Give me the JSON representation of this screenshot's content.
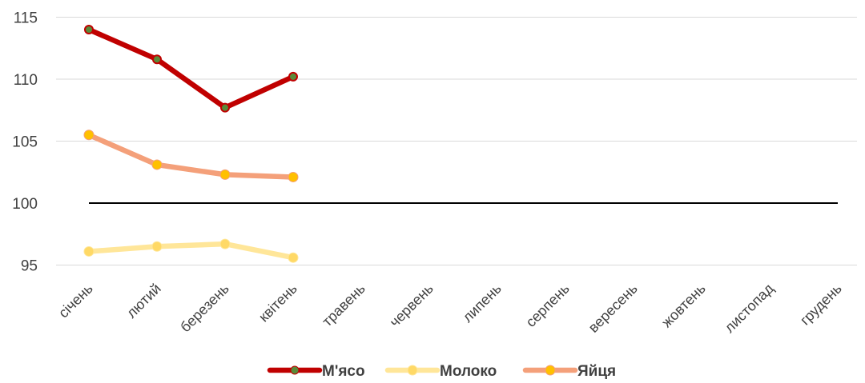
{
  "chart_data": {
    "type": "line",
    "title": "",
    "xlabel": "",
    "ylabel": "",
    "ylim": [
      93,
      116
    ],
    "yticks": [
      95,
      100,
      105,
      110,
      115
    ],
    "y_tick_labels": [
      "95",
      "100",
      "105",
      "110",
      "115"
    ],
    "grid": true,
    "legend_position": "bottom",
    "categories": [
      "січень",
      "лютий",
      "березень",
      "квітень",
      "травень",
      "червень",
      "липень",
      "серпень",
      "вересень",
      "жовтень",
      "листопад",
      "грудень"
    ],
    "reference_line": {
      "value": 100,
      "color": "#000000"
    },
    "series": [
      {
        "name": "М'ясо",
        "color": "#C00000",
        "marker_color": "#5A8A3A",
        "values": [
          114.0,
          111.6,
          107.7,
          110.2,
          null,
          null,
          null,
          null,
          null,
          null,
          null,
          null
        ]
      },
      {
        "name": "Молоко",
        "color": "#FFE699",
        "marker_color": "#FFD966",
        "values": [
          96.1,
          96.5,
          96.7,
          95.6,
          null,
          null,
          null,
          null,
          null,
          null,
          null,
          null
        ]
      },
      {
        "name": "Яйця",
        "color": "#F4A07A",
        "marker_color": "#FFC000",
        "values": [
          105.5,
          103.1,
          102.3,
          102.1,
          null,
          null,
          null,
          null,
          null,
          null,
          null,
          null
        ]
      }
    ]
  }
}
